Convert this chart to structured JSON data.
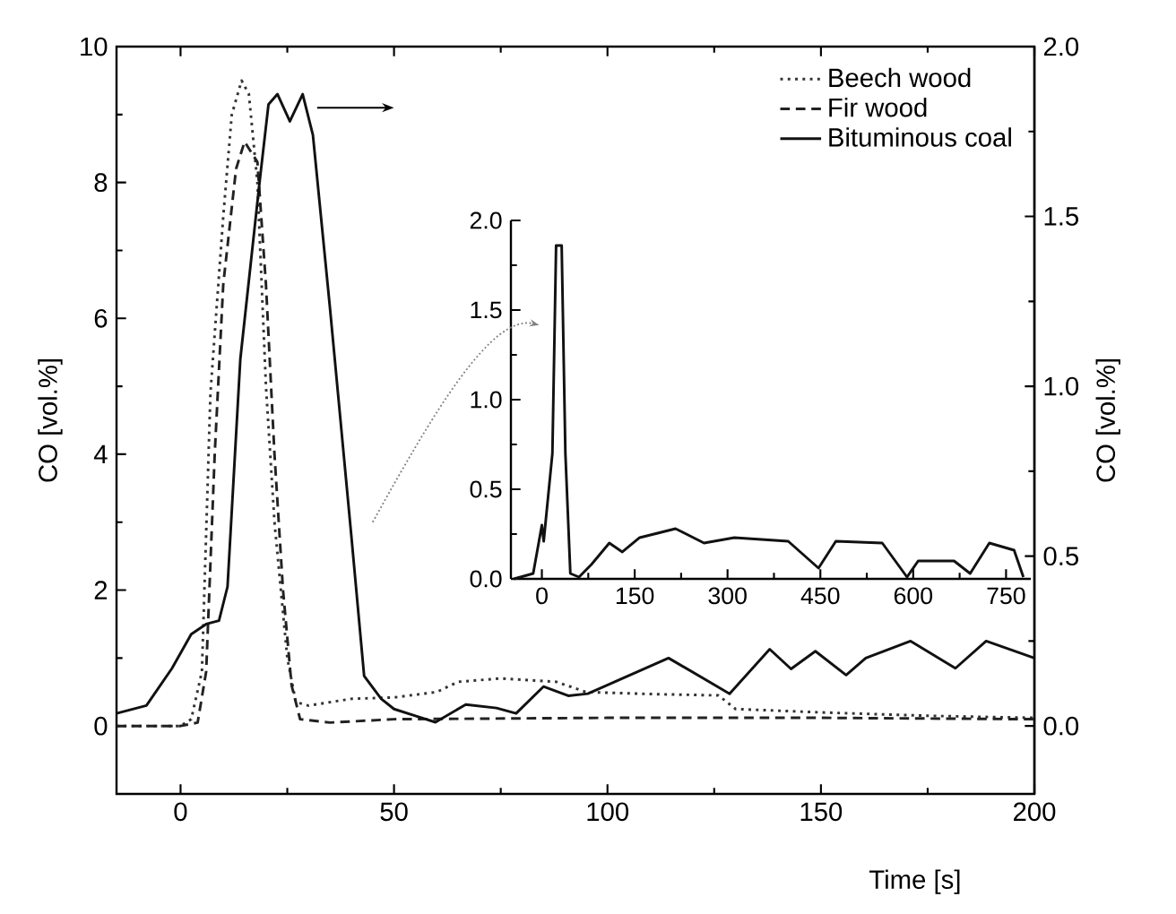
{
  "chart_data": [
    {
      "type": "line",
      "xlabel": "Time [s]",
      "ylabel": "CO [vol.%]",
      "y2label": "CO [vol.%]",
      "xlim": [
        -15,
        200
      ],
      "xticks": [
        0,
        50,
        100,
        150,
        200
      ],
      "ylim": [
        -1,
        10
      ],
      "yticks": [
        0,
        2,
        4,
        6,
        8,
        10
      ],
      "y2lim": [
        -0.2,
        2.0
      ],
      "y2ticks": [
        {
          "value": 0,
          "label": "0.0"
        },
        {
          "value": 0.5,
          "label": "0.5"
        },
        {
          "value": 1.0,
          "label": "1.0"
        },
        {
          "value": 1.5,
          "label": "1.5"
        },
        {
          "value": 2.0,
          "label": "2.0"
        }
      ],
      "legend": "top right",
      "series": [
        {
          "name": "Beech wood",
          "color": "#333333",
          "line_style": "dotted",
          "x": [
            -15,
            0,
            2.5,
            5,
            7,
            10,
            12,
            14.3,
            16,
            18,
            20,
            22,
            25,
            27,
            30,
            40,
            50,
            60,
            65,
            75,
            88,
            95,
            110,
            126,
            130,
            150,
            175,
            200
          ],
          "values": [
            0,
            0,
            0.1,
            0.8,
            4.9,
            7.5,
            9.0,
            9.5,
            9.3,
            8.0,
            5.0,
            3.0,
            1.0,
            0.35,
            0.3,
            0.4,
            0.42,
            0.5,
            0.65,
            0.7,
            0.65,
            0.5,
            0.47,
            0.45,
            0.25,
            0.2,
            0.15,
            0.12
          ]
        },
        {
          "name": "Fir wood",
          "color": "#222222",
          "line_style": "dashed",
          "x": [
            -15,
            0,
            4,
            6,
            8,
            10,
            13,
            15,
            18,
            20,
            22,
            24,
            26,
            28,
            35,
            50,
            100,
            150,
            200
          ],
          "values": [
            0,
            0,
            0.05,
            0.8,
            4.0,
            6.5,
            8.2,
            8.6,
            8.3,
            6.5,
            4.0,
            2.0,
            0.6,
            0.1,
            0.05,
            0.1,
            0.12,
            0.12,
            0.1
          ]
        },
        {
          "name": "Bituminous coal",
          "color": "#111111",
          "line_style": "solid",
          "axis": "y2",
          "x": [
            -15,
            -8,
            -2,
            2.5,
            6,
            9,
            11,
            14,
            18.5,
            20.6,
            22.7,
            25.6,
            28.6,
            31,
            35,
            40,
            43,
            47,
            50,
            55,
            59.7,
            66.8,
            74,
            78.6,
            85,
            90.8,
            95.4,
            101.7,
            114.3,
            128.6,
            138,
            143,
            148.7,
            155.9,
            160.5,
            171,
            181.5,
            188.7,
            200
          ],
          "values": [
            0.037,
            0.06,
            0.17,
            0.27,
            0.3,
            0.31,
            0.41,
            1.08,
            1.6,
            1.83,
            1.86,
            1.78,
            1.86,
            1.74,
            1.23,
            0.56,
            0.147,
            0.08,
            0.05,
            0.03,
            0.011,
            0.063,
            0.053,
            0.037,
            0.116,
            0.089,
            0.095,
            0.13,
            0.2,
            0.095,
            0.226,
            0.168,
            0.22,
            0.15,
            0.2,
            0.25,
            0.17,
            0.25,
            0.2
          ]
        }
      ]
    },
    {
      "type": "line",
      "xlim": [
        -50,
        790
      ],
      "xticks": [
        0,
        150,
        300,
        450,
        600,
        750
      ],
      "ylim": [
        0,
        2.0
      ],
      "yticks": [
        {
          "value": 0,
          "label": "0.0"
        },
        {
          "value": 0.5,
          "label": "0.5"
        },
        {
          "value": 1.0,
          "label": "1.0"
        },
        {
          "value": 1.5,
          "label": "1.5"
        },
        {
          "value": 2.0,
          "label": "2.0"
        }
      ],
      "series": [
        {
          "color": "#111111",
          "line_style": "solid",
          "x": [
            -45,
            -14,
            0,
            3,
            17,
            23,
            32,
            38,
            46,
            60,
            80,
            109,
            130,
            158,
            216,
            262,
            311,
            398,
            447,
            475,
            550,
            590,
            608,
            666,
            692,
            723,
            763,
            778
          ],
          "values": [
            0.0,
            0.03,
            0.3,
            0.21,
            0.7,
            1.86,
            1.86,
            0.7,
            0.03,
            0.01,
            0.08,
            0.2,
            0.15,
            0.23,
            0.28,
            0.2,
            0.23,
            0.21,
            0.06,
            0.21,
            0.2,
            0.01,
            0.1,
            0.1,
            0.03,
            0.2,
            0.16,
            0.01
          ]
        }
      ]
    }
  ]
}
